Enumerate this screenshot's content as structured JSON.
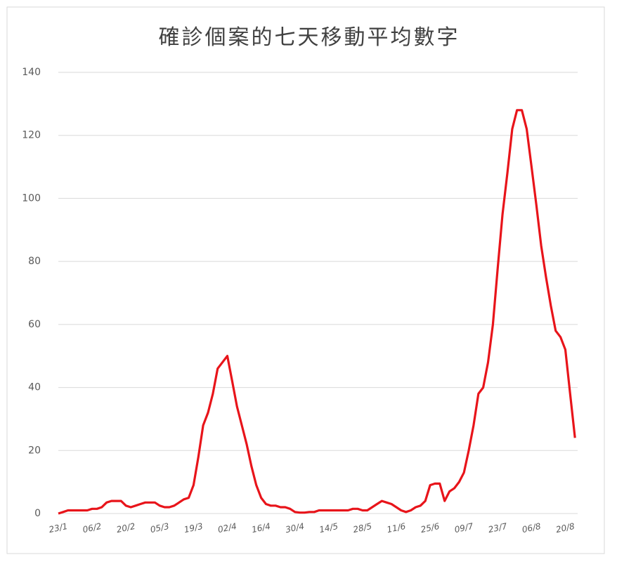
{
  "chart_data": {
    "type": "line",
    "title": "確診個案的七天移動平均數字",
    "categories": [
      "23/1",
      null,
      null,
      null,
      null,
      null,
      null,
      "06/2",
      null,
      null,
      null,
      null,
      null,
      null,
      "20/2",
      null,
      null,
      null,
      null,
      null,
      null,
      "05/3",
      null,
      null,
      null,
      null,
      null,
      null,
      "19/3",
      null,
      null,
      null,
      null,
      null,
      null,
      "02/4",
      null,
      null,
      null,
      null,
      null,
      null,
      "16/4",
      null,
      null,
      null,
      null,
      null,
      null,
      "30/4",
      null,
      null,
      null,
      null,
      null,
      null,
      "14/5",
      null,
      null,
      null,
      null,
      null,
      null,
      "28/5",
      null,
      null,
      null,
      null,
      null,
      null,
      "11/6",
      null,
      null,
      null,
      null,
      null,
      null,
      "25/6",
      null,
      null,
      null,
      null,
      null,
      null,
      "09/7",
      null,
      null,
      null,
      null,
      null,
      null,
      "23/7",
      null,
      null,
      null,
      null,
      null,
      null,
      "06/8",
      null,
      null,
      null,
      null,
      null,
      null,
      "20/8",
      null,
      null
    ],
    "series": [
      {
        "color": "#e8141a",
        "values": [
          0,
          0.5,
          1,
          1,
          1,
          1,
          1,
          1.5,
          1.5,
          2,
          3.5,
          4,
          4,
          4,
          2.5,
          2,
          2.5,
          3,
          3.5,
          3.5,
          3.5,
          2.5,
          2,
          2,
          2.5,
          3.5,
          4.5,
          5,
          9,
          18,
          28,
          32,
          38,
          46,
          48,
          50,
          42,
          34,
          28,
          22,
          15,
          9,
          5,
          3,
          2.5,
          2.5,
          2,
          2,
          1.5,
          0.5,
          0.3,
          0.3,
          0.5,
          0.5,
          1,
          1,
          1,
          1,
          1,
          1,
          1,
          1.5,
          1.5,
          1,
          1,
          2,
          3,
          4,
          3.5,
          3,
          2,
          1,
          0.5,
          1,
          2,
          2.5,
          4,
          9,
          9.5,
          9.5,
          4,
          7,
          8,
          10,
          13,
          20,
          28,
          38,
          40,
          48,
          60,
          78,
          95,
          108,
          122,
          128,
          128,
          122,
          110,
          98,
          85,
          75,
          66,
          58,
          56,
          52,
          38,
          24
        ]
      }
    ],
    "ylim": [
      0,
      140
    ],
    "yticks": [
      0,
      20,
      40,
      60,
      80,
      100,
      120,
      140
    ],
    "grid": true
  }
}
